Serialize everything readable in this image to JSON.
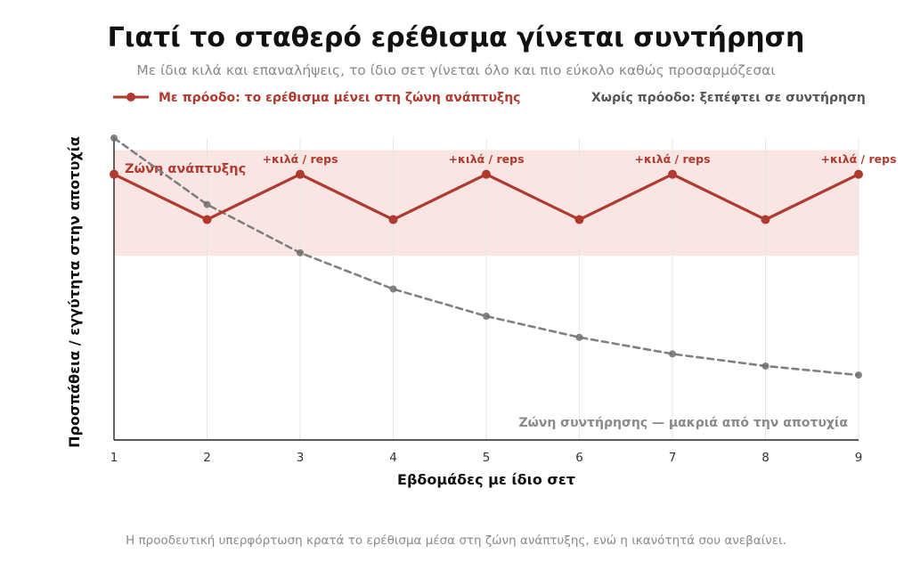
{
  "chart_data": {
    "type": "line",
    "title": "Γιατί το σταθερό ερέθισμα γίνεται συντήρηση",
    "subtitle": "Με ίδια κιλά και επαναλήψεις, το ίδιο σετ γίνεται όλο και πιο εύκολο καθώς προσαρμόζεσαι",
    "xlabel": "Εβδομάδες με ίδιο σετ",
    "ylabel": "Προσπάθεια / εγγύτητα στην αποτυχία",
    "x": [
      1,
      2,
      3,
      4,
      5,
      6,
      7,
      8,
      9
    ],
    "xlim": [
      1,
      9
    ],
    "ylim": [
      0,
      100
    ],
    "grid": "vertical",
    "legend_position": "top",
    "series": [
      {
        "name": "Με πρόοδο: το ερέθισμα μένει στη ζώνη ανάπτυξης",
        "color": "#b03a2e",
        "style": "solid",
        "values": [
          88,
          73,
          88,
          73,
          88,
          73,
          88,
          73,
          88
        ]
      },
      {
        "name": "Χωρίς πρόοδο: ξεπέφτει σε συντήρηση",
        "color": "#808080",
        "style": "dashed",
        "values": [
          100,
          78,
          62,
          50,
          41,
          34,
          28.5,
          24.5,
          21.5
        ]
      }
    ],
    "band": {
      "label": "Ζώνη ανάπτυξης",
      "y0": 61,
      "y1": 96,
      "color": "#f9e5e4"
    },
    "annotations": [
      {
        "x": 3,
        "text": "+κιλά / reps"
      },
      {
        "x": 5,
        "text": "+κιλά / reps"
      },
      {
        "x": 7,
        "text": "+κιλά / reps"
      },
      {
        "x": 9,
        "text": "+κιλά / reps"
      }
    ],
    "maintenance_label": "Ζώνη συντήρησης — μακριά από την αποτυχία",
    "footer": "Η προοδευτική υπερφόρτωση κρατά το ερέθισμα μέσα στη ζώνη ανάπτυξης, ενώ η ικανότητά σου ανεβαίνει."
  }
}
